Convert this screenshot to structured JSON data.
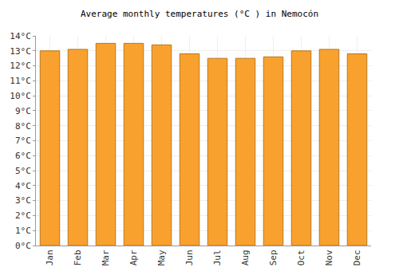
{
  "chart_data": {
    "type": "bar",
    "title": "Average monthly temperatures (°C ) in Nemocón",
    "categories": [
      "Jan",
      "Feb",
      "Mar",
      "Apr",
      "May",
      "Jun",
      "Jul",
      "Aug",
      "Sep",
      "Oct",
      "Nov",
      "Dec"
    ],
    "values": [
      13.0,
      13.1,
      13.5,
      13.5,
      13.4,
      12.8,
      12.5,
      12.5,
      12.6,
      13.0,
      13.1,
      12.8
    ],
    "color": "#f9a12e",
    "ylim": [
      0,
      14
    ],
    "yticks": [
      {
        "value": 0,
        "label": "0°C"
      },
      {
        "value": 1,
        "label": "1°C"
      },
      {
        "value": 2,
        "label": "2°C"
      },
      {
        "value": 3,
        "label": "3°C"
      },
      {
        "value": 4,
        "label": "4°C"
      },
      {
        "value": 5,
        "label": "5°C"
      },
      {
        "value": 6,
        "label": "6°C"
      },
      {
        "value": 7,
        "label": "7°C"
      },
      {
        "value": 8,
        "label": "8°C"
      },
      {
        "value": 9,
        "label": "9°C"
      },
      {
        "value": 10,
        "label": "10°C"
      },
      {
        "value": 11,
        "label": "11°C"
      },
      {
        "value": 12,
        "label": "12°C"
      },
      {
        "value": 13,
        "label": "13°C"
      },
      {
        "value": 14,
        "label": "14°C"
      }
    ],
    "grid": true
  }
}
